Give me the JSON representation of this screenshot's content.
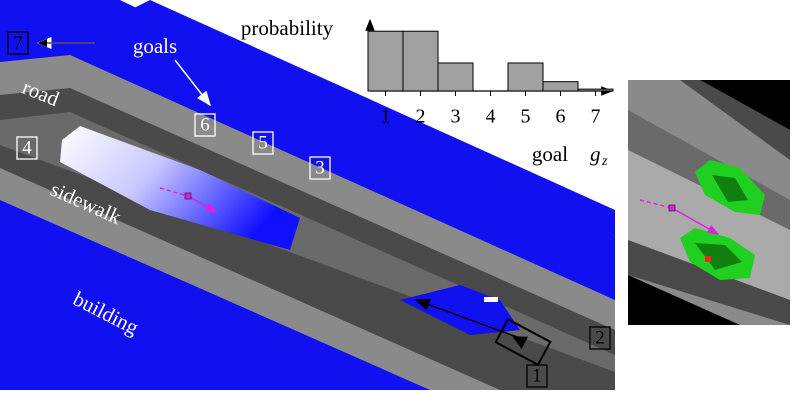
{
  "chart_data": {
    "type": "bar",
    "y_label": "probability",
    "x_label": "goal",
    "x_symbol": "g",
    "x_symbol_sub": "z",
    "categories": [
      "1",
      "2",
      "3",
      "4",
      "5",
      "6",
      "7"
    ],
    "values": [
      0.32,
      0.32,
      0.15,
      0,
      0.15,
      0.05,
      0.01
    ],
    "color": "#a0a0a0",
    "ylim": [
      0,
      0.38
    ]
  },
  "map": {
    "goal_markers": [
      "1",
      "2",
      "3",
      "4",
      "5",
      "6",
      "7"
    ],
    "goals_label": "goals",
    "road_label": "road",
    "sidewalk_label": "sidewalk",
    "building_label": "building"
  }
}
